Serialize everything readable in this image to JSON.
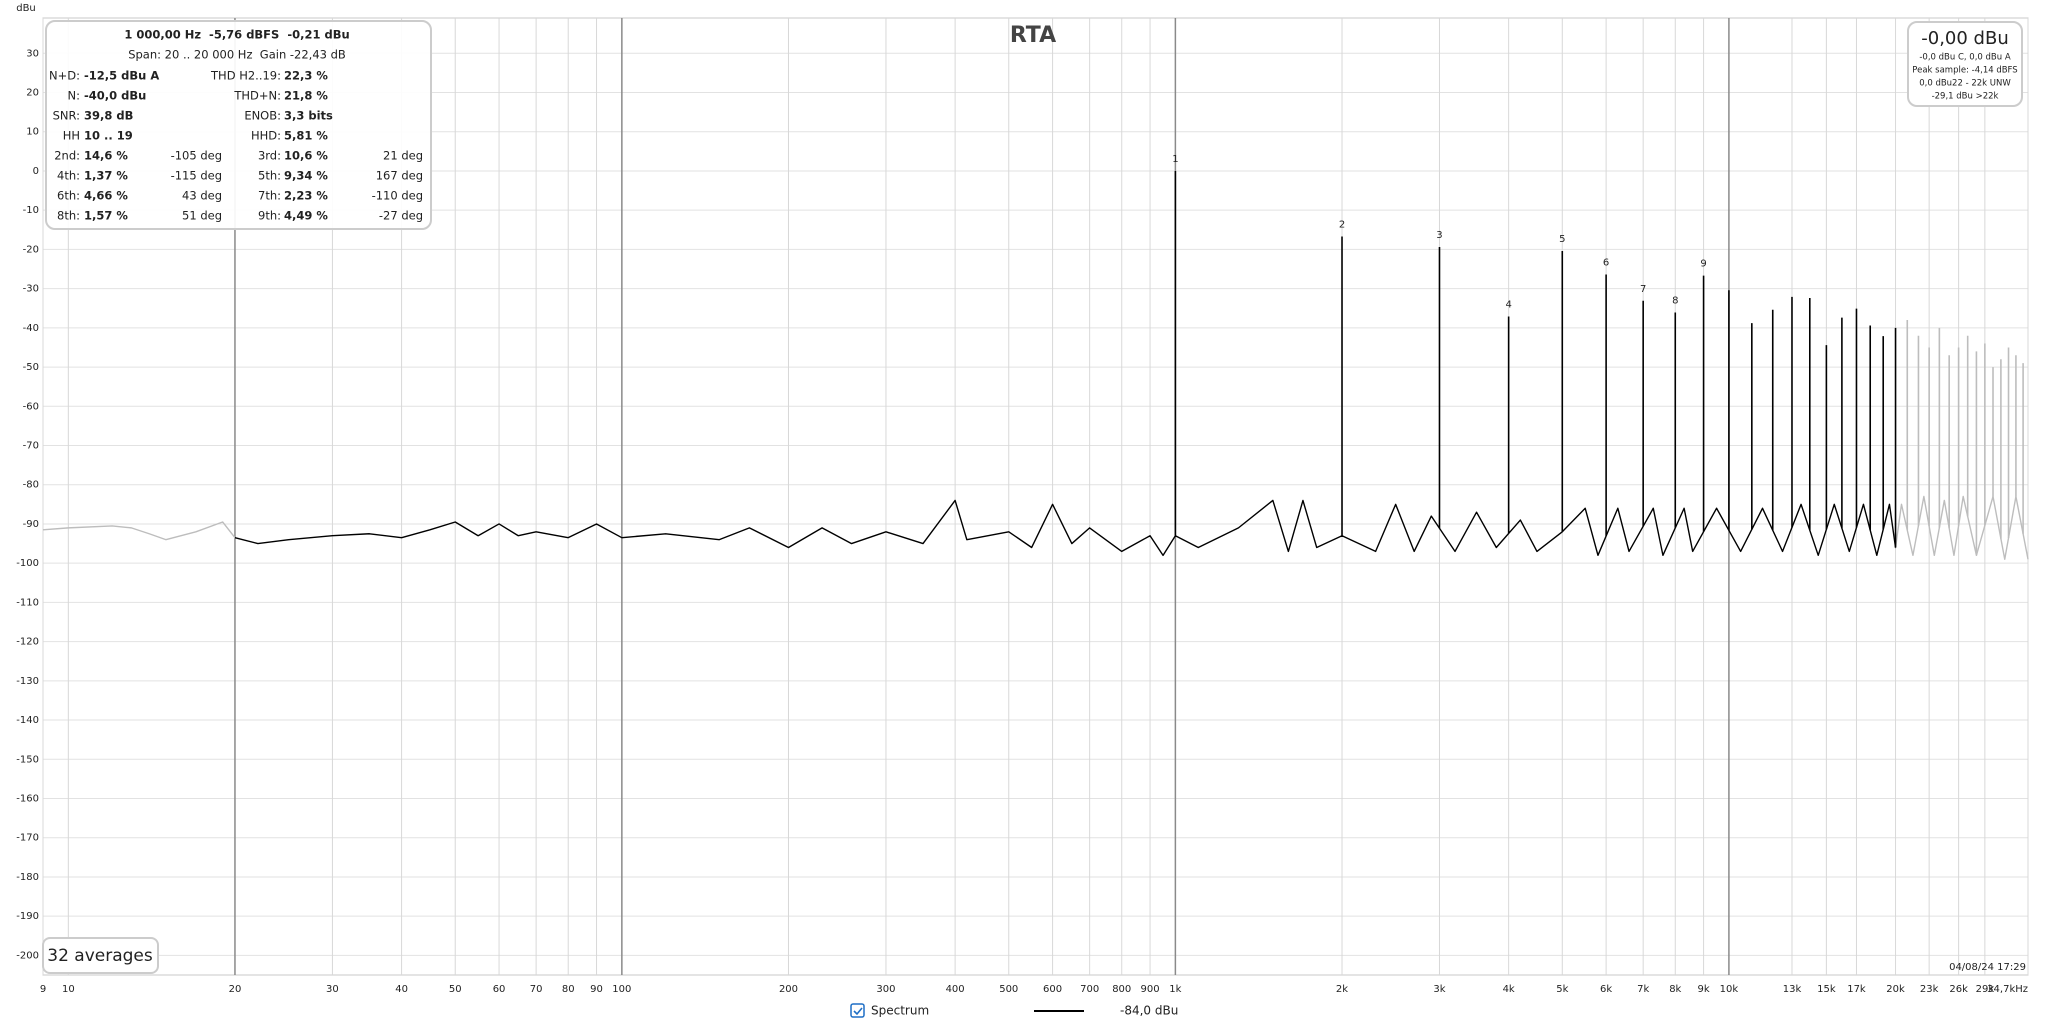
{
  "chart_data": {
    "type": "line",
    "title": "RTA",
    "y_label": "dBu",
    "x_scale": "log",
    "xlim": [
      9,
      34700
    ],
    "ylim": [
      -205,
      39
    ],
    "xticks": [
      9,
      10,
      20,
      30,
      40,
      50,
      60,
      70,
      80,
      90,
      100,
      200,
      300,
      400,
      500,
      600,
      700,
      800,
      900,
      {
        "value": 1000,
        "label": "1k"
      },
      {
        "value": 2000,
        "label": "2k"
      },
      {
        "value": 3000,
        "label": "3k"
      },
      {
        "value": 4000,
        "label": "4k"
      },
      {
        "value": 5000,
        "label": "5k"
      },
      {
        "value": 6000,
        "label": "6k"
      },
      {
        "value": 7000,
        "label": "7k"
      },
      {
        "value": 8000,
        "label": "8k"
      },
      {
        "value": 9000,
        "label": "9k"
      },
      {
        "value": 10000,
        "label": "10k"
      },
      {
        "value": 13000,
        "label": "13k"
      },
      {
        "value": 15000,
        "label": "15k"
      },
      {
        "value": 17000,
        "label": "17k"
      },
      {
        "value": 20000,
        "label": "20k"
      },
      {
        "value": 23000,
        "label": "23k"
      },
      {
        "value": 26000,
        "label": "26k"
      },
      {
        "value": 29000,
        "label": "29k"
      },
      {
        "value": 34700,
        "label": "34,7kHz"
      }
    ],
    "yticks": [
      30,
      20,
      10,
      0,
      -10,
      -20,
      -30,
      -40,
      -50,
      -60,
      -70,
      -80,
      -90,
      -100,
      -110,
      -120,
      -130,
      -140,
      -150,
      -160,
      -170,
      -180,
      -190,
      -200
    ],
    "grid": true,
    "span": [
      20,
      20000
    ],
    "out_of_span_color": "#bdbdbd",
    "series": [
      {
        "name": "Spectrum",
        "color": "#000000",
        "legend_value": "-84,0 dBu",
        "x": [
          9,
          10,
          12,
          13,
          14,
          15,
          17,
          19,
          20,
          22,
          25,
          30,
          35,
          40,
          45,
          50,
          55,
          60,
          65,
          70,
          80,
          90,
          100,
          120,
          150,
          170,
          200,
          230,
          260,
          300,
          350,
          400,
          420,
          500,
          550,
          600,
          650,
          700,
          800,
          900,
          950,
          1000,
          1100,
          1300,
          1500,
          1600,
          1700,
          1800,
          2000,
          2300,
          2500,
          2700,
          2900,
          3200,
          3500,
          3800,
          4200,
          4500,
          5000,
          5500,
          5800,
          6300,
          6600,
          7300,
          7600,
          8300,
          8600,
          9500,
          10500,
          11500,
          12500,
          13500,
          14500,
          15500,
          16500,
          17500,
          18500,
          19500,
          20000,
          20500,
          21500,
          22500,
          23500,
          24500,
          25500,
          26500,
          28000,
          30000,
          31500,
          33000,
          34700
        ],
        "values": [
          -91.5,
          -91,
          -90.5,
          -91,
          -92.5,
          -94,
          -92,
          -89.5,
          -93.5,
          -95,
          -94,
          -93,
          -92.5,
          -93.5,
          -91.5,
          -89.5,
          -93,
          -90,
          -93,
          -92,
          -93.5,
          -90,
          -93.5,
          -92.5,
          -94,
          -91,
          -96,
          -91,
          -95,
          -92,
          -95,
          -84,
          -94,
          -92,
          -96,
          -85,
          -95,
          -91,
          -97,
          -93,
          -98,
          -93,
          -96,
          -91,
          -84,
          -97,
          -84,
          -96,
          -93,
          -97,
          -85,
          -97,
          -88,
          -97,
          -87,
          -96,
          -89,
          -97,
          -92,
          -86,
          -98,
          -86,
          -97,
          -86,
          -98,
          -86,
          -97,
          -86,
          -97,
          -86,
          -97,
          -85,
          -98,
          -85,
          -97,
          -85,
          -98,
          -85,
          -96,
          -85,
          -98,
          -83,
          -98,
          -84,
          -98,
          -83,
          -98,
          -83,
          -99,
          -83,
          -99
        ]
      }
    ],
    "peaks": {
      "x": [
        1000,
        2000,
        3000,
        4000,
        5000,
        6000,
        7000,
        8000,
        9000,
        10000,
        11000,
        12000,
        13000,
        14000,
        15000,
        16000,
        17000,
        18000,
        19000,
        20000,
        21000,
        22000,
        23000,
        24000,
        25000,
        26000,
        27000,
        28000,
        29000,
        30000,
        31000,
        32000,
        33000,
        34000
      ],
      "values": [
        0,
        -16.7,
        -19.4,
        -37.1,
        -20.4,
        -26.4,
        -33.1,
        -36.1,
        -26.7,
        -30.4,
        -38.8,
        -35.4,
        -32.1,
        -32.4,
        -44.4,
        -37.4,
        -35.1,
        -39.4,
        -42.1,
        -40,
        -38,
        -42,
        -45,
        -40,
        -47,
        -45,
        -42,
        -46,
        -44,
        -50,
        -48,
        -45,
        -47,
        -49
      ],
      "labels": [
        "1",
        "2",
        "3",
        "4",
        "5",
        "6",
        "7",
        "8",
        "9"
      ]
    }
  },
  "info_box": {
    "header": [
      "1 000,00 Hz  -5,76 dBFS  -0,21 dBu",
      "Span: 20 .. 20 000 Hz  Gain -22,43 dB"
    ],
    "rows": [
      [
        "N+D:",
        "-12,5 dBu A",
        "THD H2..19:",
        "22,3 %"
      ],
      [
        "N:",
        "-40,0 dBu",
        "THD+N:",
        "21,8 %"
      ],
      [
        "SNR:",
        "39,8 dB",
        "ENOB:",
        "3,3 bits"
      ],
      [
        "HH",
        "10 .. 19",
        "HHD:",
        "5,81 %"
      ],
      [
        "2nd:",
        "14,6 %",
        "-105 deg",
        "3rd:",
        "10,6 %",
        "21 deg"
      ],
      [
        "4th:",
        "1,37 %",
        "-115 deg",
        "5th:",
        "9,34 %",
        "167 deg"
      ],
      [
        "6th:",
        "4,66 %",
        "43 deg",
        "7th:",
        "2,23 %",
        "-110 deg"
      ],
      [
        "8th:",
        "1,57 %",
        "51 deg",
        "9th:",
        "4,49 %",
        "-27 deg"
      ]
    ]
  },
  "level_box": [
    "-0,00 dBu",
    "-0,0 dBu C, 0,0 dBu A",
    "Peak sample: -4,14 dBFS",
    "0,0 dBu22 - 22k UNW",
    "-29,1 dBu >22k"
  ],
  "averages": "32 averages",
  "timestamp": "04/08/24 17:29"
}
